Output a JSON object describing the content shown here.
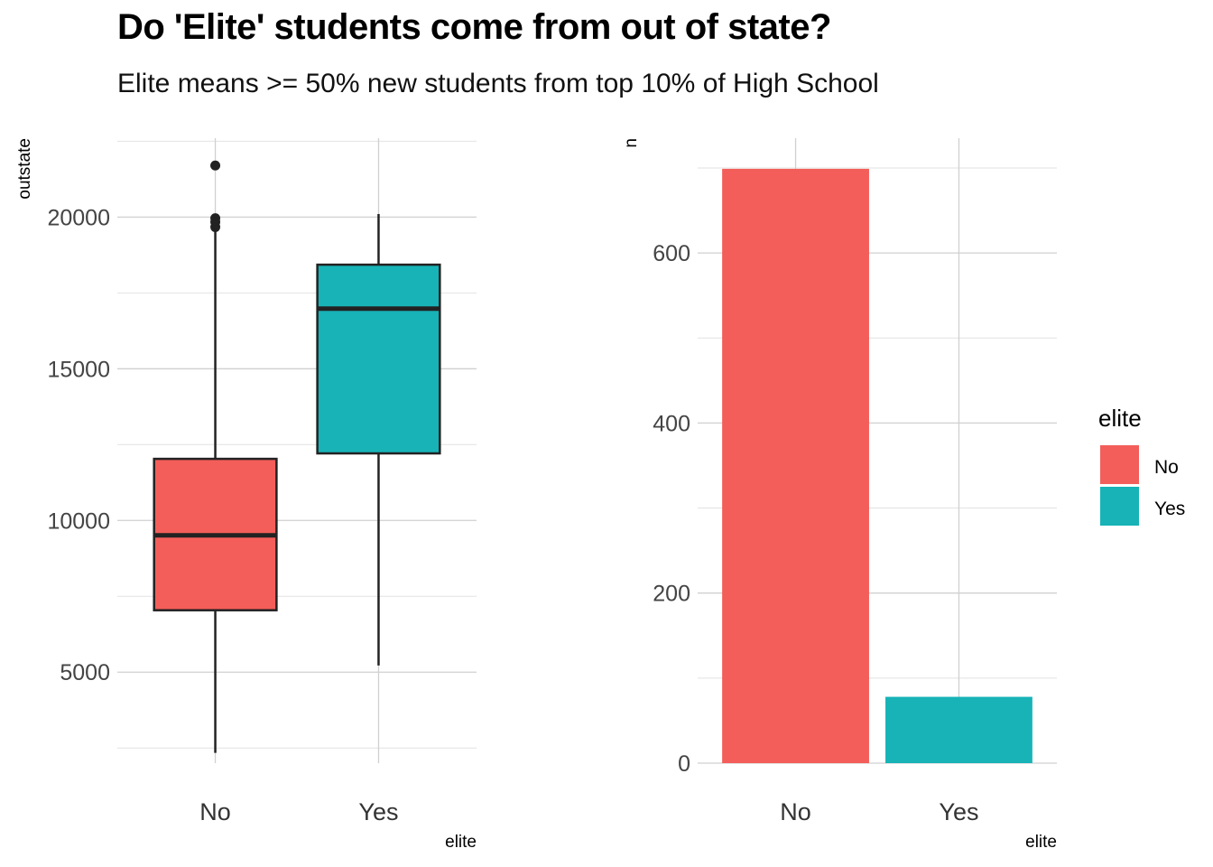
{
  "title": "Do 'Elite' students come from out of state?",
  "subtitle": "Elite means >= 50% new students from top 10% of High School",
  "colors": {
    "No": "#F35E5A",
    "Yes": "#17B3B7",
    "outline": "#222222"
  },
  "chart_data": [
    {
      "type": "boxplot",
      "xlabel": "elite",
      "ylabel": "outstate",
      "categories": [
        "No",
        "Yes"
      ],
      "yticks": [
        5000,
        10000,
        15000,
        20000
      ],
      "ylim": [
        2000,
        22600
      ],
      "boxes": [
        {
          "name": "No",
          "min": 2340,
          "q1": 7040,
          "median": 9510,
          "q3": 12030,
          "max": 19540,
          "outliers": [
            19670,
            19840,
            19960,
            21700
          ]
        },
        {
          "name": "Yes",
          "min": 5220,
          "q1": 12210,
          "median": 16980,
          "q3": 18430,
          "max": 20100,
          "outliers": []
        }
      ],
      "grid": true
    },
    {
      "type": "bar",
      "xlabel": "elite",
      "ylabel": "n",
      "categories": [
        "No",
        "Yes"
      ],
      "values": [
        699,
        78
      ],
      "yticks": [
        0,
        200,
        400,
        600
      ],
      "ylim": [
        0,
        735
      ],
      "grid": true
    }
  ],
  "legend": {
    "title": "elite",
    "position": "right",
    "items": [
      {
        "label": "No",
        "color": "#F35E5A"
      },
      {
        "label": "Yes",
        "color": "#17B3B7"
      }
    ]
  }
}
